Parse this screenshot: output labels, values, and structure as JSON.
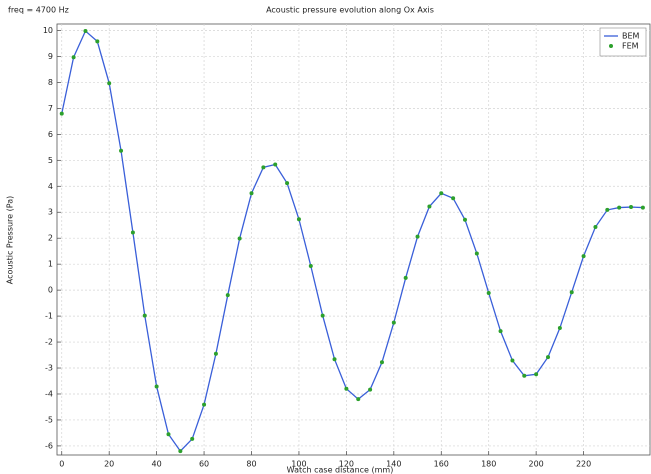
{
  "chart_data": {
    "type": "line",
    "title": "Acoustic pressure evolution along Ox Axis",
    "annotation": "freq = 4700 Hz",
    "x_label": "Watch case distance (mm)",
    "y_label": "Acoustic Pressure (Pa)",
    "x": [
      0,
      5,
      10,
      15,
      20,
      25,
      30,
      35,
      40,
      45,
      50,
      55,
      60,
      65,
      70,
      75,
      80,
      85,
      90,
      95,
      100,
      105,
      110,
      115,
      120,
      125,
      130,
      135,
      140,
      145,
      150,
      155,
      160,
      165,
      170,
      175,
      180,
      185,
      190,
      195,
      200,
      205,
      210,
      215,
      220,
      225,
      230,
      235,
      240,
      245
    ],
    "series": [
      {
        "name": "BEM",
        "color": "#3a5fd9",
        "mode": "lines",
        "values": [
          6.8,
          8.97,
          9.98,
          9.58,
          7.97,
          5.37,
          2.22,
          -0.98,
          -3.71,
          -5.55,
          -6.2,
          -5.73,
          -4.41,
          -2.45,
          -0.19,
          1.99,
          3.73,
          4.73,
          4.84,
          4.12,
          2.73,
          0.93,
          -0.98,
          -2.66,
          -3.8,
          -4.2,
          -3.83,
          -2.78,
          -1.25,
          0.47,
          2.06,
          3.22,
          3.73,
          3.54,
          2.71,
          1.41,
          -0.11,
          -1.58,
          -2.71,
          -3.3,
          -3.24,
          -2.58,
          -1.46,
          -0.08,
          1.31,
          2.43,
          3.09,
          3.18,
          3.2,
          3.18
        ]
      },
      {
        "name": "FEM",
        "color": "#2ca02c",
        "mode": "markers",
        "values": [
          6.8,
          8.97,
          9.98,
          9.58,
          7.97,
          5.37,
          2.22,
          -0.98,
          -3.71,
          -5.55,
          -6.2,
          -5.73,
          -4.41,
          -2.45,
          -0.19,
          1.99,
          3.73,
          4.73,
          4.84,
          4.12,
          2.73,
          0.93,
          -0.98,
          -2.66,
          -3.8,
          -4.2,
          -3.83,
          -2.78,
          -1.25,
          0.47,
          2.06,
          3.22,
          3.73,
          3.54,
          2.71,
          1.41,
          -0.11,
          -1.58,
          -2.71,
          -3.3,
          -3.24,
          -2.58,
          -1.46,
          -0.08,
          1.31,
          2.43,
          3.09,
          3.18,
          3.2,
          3.18
        ]
      }
    ],
    "xlim": [
      -2,
      248
    ],
    "ylim": [
      -6.35,
      10.25
    ],
    "xticks": [
      0,
      20,
      40,
      60,
      80,
      100,
      120,
      140,
      160,
      180,
      200,
      220
    ],
    "yticks": [
      -6,
      -5,
      -4,
      -3,
      -2,
      -1,
      0,
      1,
      2,
      3,
      4,
      5,
      6,
      7,
      8,
      9,
      10
    ],
    "grid": true,
    "legend": "upper-right"
  }
}
